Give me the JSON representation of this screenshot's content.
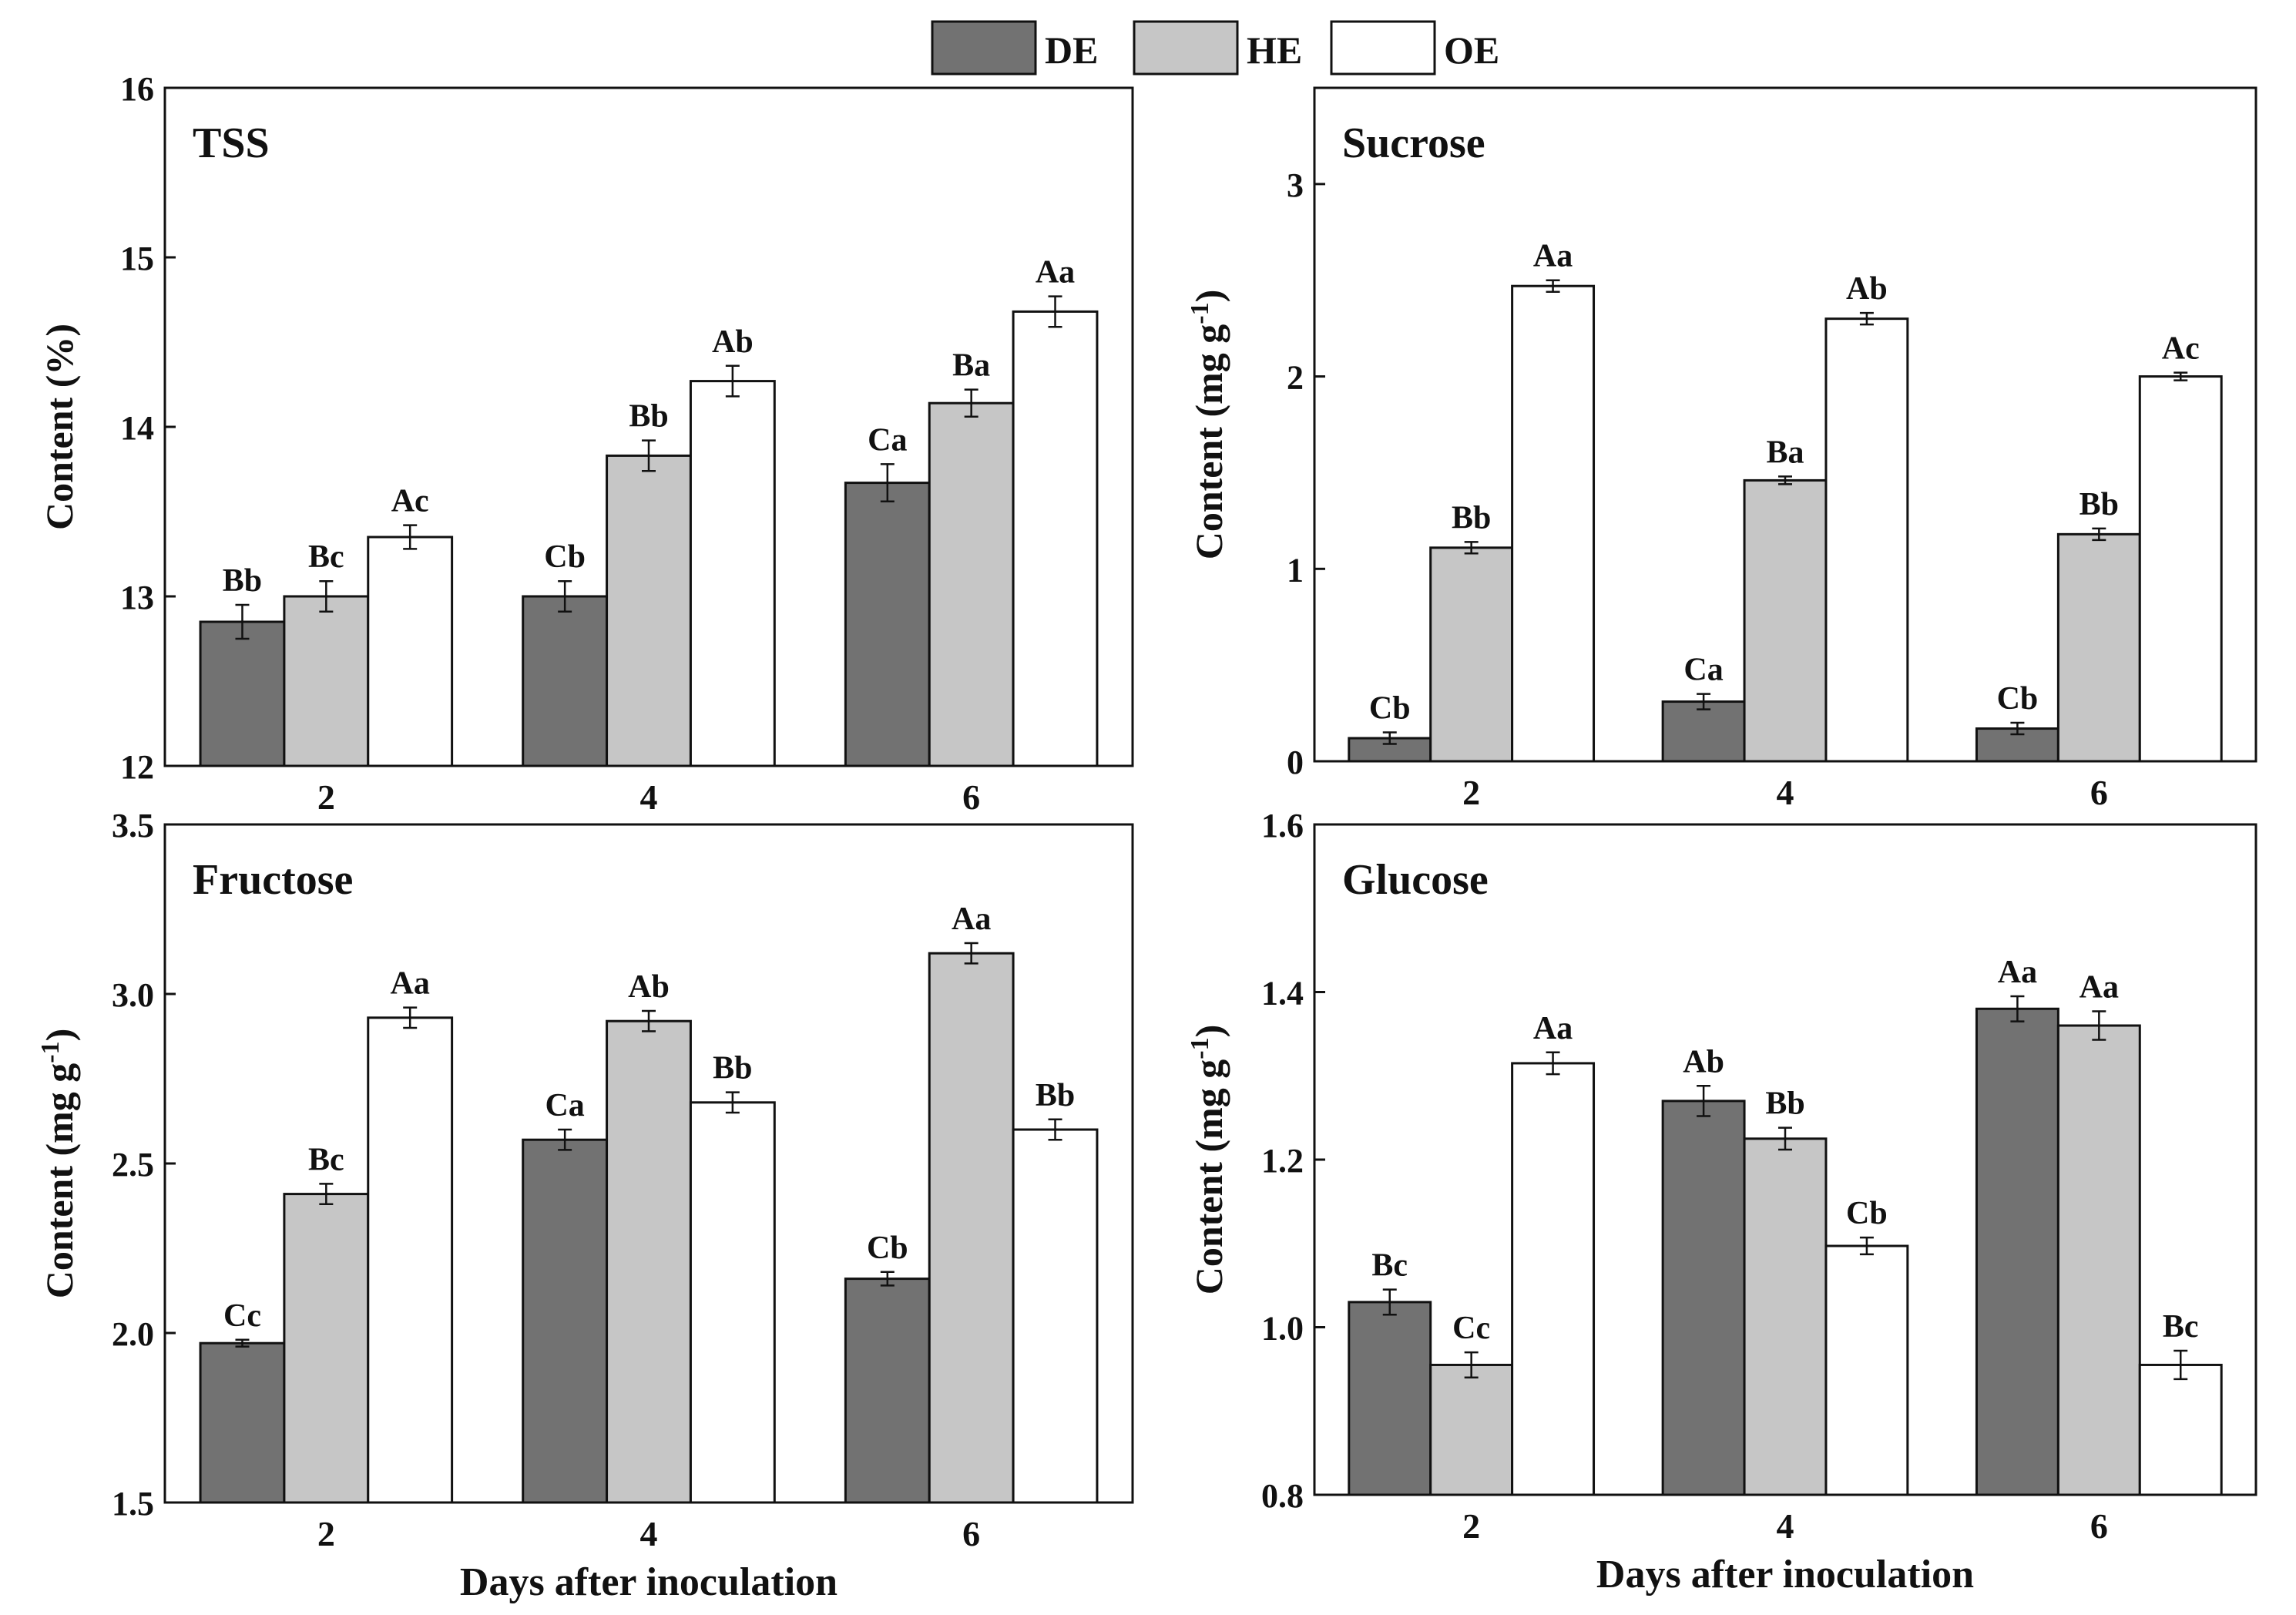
{
  "legend": {
    "items": [
      {
        "label": "DE",
        "color": "#727272"
      },
      {
        "label": "HE",
        "color": "#c6c6c6"
      },
      {
        "label": "OE",
        "color": "#ffffff"
      }
    ]
  },
  "chart_data": [
    {
      "type": "bar",
      "title": "TSS",
      "ylabel": "Content (%)",
      "xlabel": "",
      "categories": [
        "2",
        "4",
        "6"
      ],
      "ylim": [
        12,
        16
      ],
      "yticks": [
        12,
        13,
        14,
        15,
        16
      ],
      "ytick_labels": [
        "12",
        "13",
        "14",
        "15",
        "16"
      ],
      "series": [
        {
          "name": "DE",
          "values": [
            12.85,
            13.0,
            13.67
          ],
          "errors": [
            0.1,
            0.09,
            0.11
          ],
          "labels": [
            "Bb",
            "Cb",
            "Ca"
          ]
        },
        {
          "name": "HE",
          "values": [
            13.0,
            13.83,
            14.14
          ],
          "errors": [
            0.09,
            0.09,
            0.08
          ],
          "labels": [
            "Bc",
            "Bb",
            "Ba"
          ]
        },
        {
          "name": "OE",
          "values": [
            13.35,
            14.27,
            14.68
          ],
          "errors": [
            0.07,
            0.09,
            0.09
          ],
          "labels": [
            "Ac",
            "Ab",
            "Aa"
          ]
        }
      ]
    },
    {
      "type": "bar",
      "title": "Sucrose",
      "ylabel": "Content (mg g",
      "ylabel_sup": "-1",
      "ylabel_end": ")",
      "xlabel": "",
      "categories": [
        "2",
        "4",
        "6"
      ],
      "ylim": [
        0,
        3.5
      ],
      "yticks": [
        0,
        1,
        2,
        3
      ],
      "ytick_labels": [
        "0",
        "1",
        "2",
        "3"
      ],
      "series": [
        {
          "name": "DE",
          "values": [
            0.12,
            0.31,
            0.17
          ],
          "errors": [
            0.03,
            0.04,
            0.03
          ],
          "labels": [
            "Cb",
            "Ca",
            "Cb"
          ]
        },
        {
          "name": "HE",
          "values": [
            1.11,
            1.46,
            1.18
          ],
          "errors": [
            0.03,
            0.02,
            0.03
          ],
          "labels": [
            "Bb",
            "Ba",
            "Bb"
          ]
        },
        {
          "name": "OE",
          "values": [
            2.47,
            2.3,
            2.0
          ],
          "errors": [
            0.03,
            0.03,
            0.02
          ],
          "labels": [
            "Aa",
            "Ab",
            "Ac"
          ]
        }
      ]
    },
    {
      "type": "bar",
      "title": "Fructose",
      "ylabel": "Content (mg g",
      "ylabel_sup": "-1",
      "ylabel_end": ")",
      "xlabel": "Days after inoculation",
      "categories": [
        "2",
        "4",
        "6"
      ],
      "ylim": [
        1.5,
        3.5
      ],
      "yticks": [
        1.5,
        2.0,
        2.5,
        3.0,
        3.5
      ],
      "ytick_labels": [
        "1.5",
        "2.0",
        "2.5",
        "3.0",
        "3.5"
      ],
      "series": [
        {
          "name": "DE",
          "values": [
            1.97,
            2.57,
            2.16
          ],
          "errors": [
            0.01,
            0.03,
            0.02
          ],
          "labels": [
            "Cc",
            "Ca",
            "Cb"
          ]
        },
        {
          "name": "HE",
          "values": [
            2.41,
            2.92,
            3.12
          ],
          "errors": [
            0.03,
            0.03,
            0.03
          ],
          "labels": [
            "Bc",
            "Ab",
            "Aa"
          ]
        },
        {
          "name": "OE",
          "values": [
            2.93,
            2.68,
            2.6
          ],
          "errors": [
            0.03,
            0.03,
            0.03
          ],
          "labels": [
            "Aa",
            "Bb",
            "Bb"
          ]
        }
      ]
    },
    {
      "type": "bar",
      "title": "Glucose",
      "ylabel": "Content (mg g",
      "ylabel_sup": "-1",
      "ylabel_end": ")",
      "xlabel": "Days after inoculation",
      "categories": [
        "2",
        "4",
        "6"
      ],
      "ylim": [
        0.8,
        1.6
      ],
      "yticks": [
        0.8,
        1.0,
        1.2,
        1.4,
        1.6
      ],
      "ytick_labels": [
        "0.8",
        "1.0",
        "1.2",
        "1.4",
        "1.6"
      ],
      "series": [
        {
          "name": "DE",
          "values": [
            1.03,
            1.27,
            1.38
          ],
          "errors": [
            0.015,
            0.018,
            0.015
          ],
          "labels": [
            "Bc",
            "Ab",
            "Aa"
          ]
        },
        {
          "name": "HE",
          "values": [
            0.955,
            1.225,
            1.36
          ],
          "errors": [
            0.015,
            0.013,
            0.017
          ],
          "labels": [
            "Cc",
            "Bb",
            "Aa"
          ]
        },
        {
          "name": "OE",
          "values": [
            1.315,
            1.097,
            0.955
          ],
          "errors": [
            0.013,
            0.01,
            0.017
          ],
          "labels": [
            "Aa",
            "Cb",
            "Bc"
          ]
        }
      ]
    }
  ]
}
